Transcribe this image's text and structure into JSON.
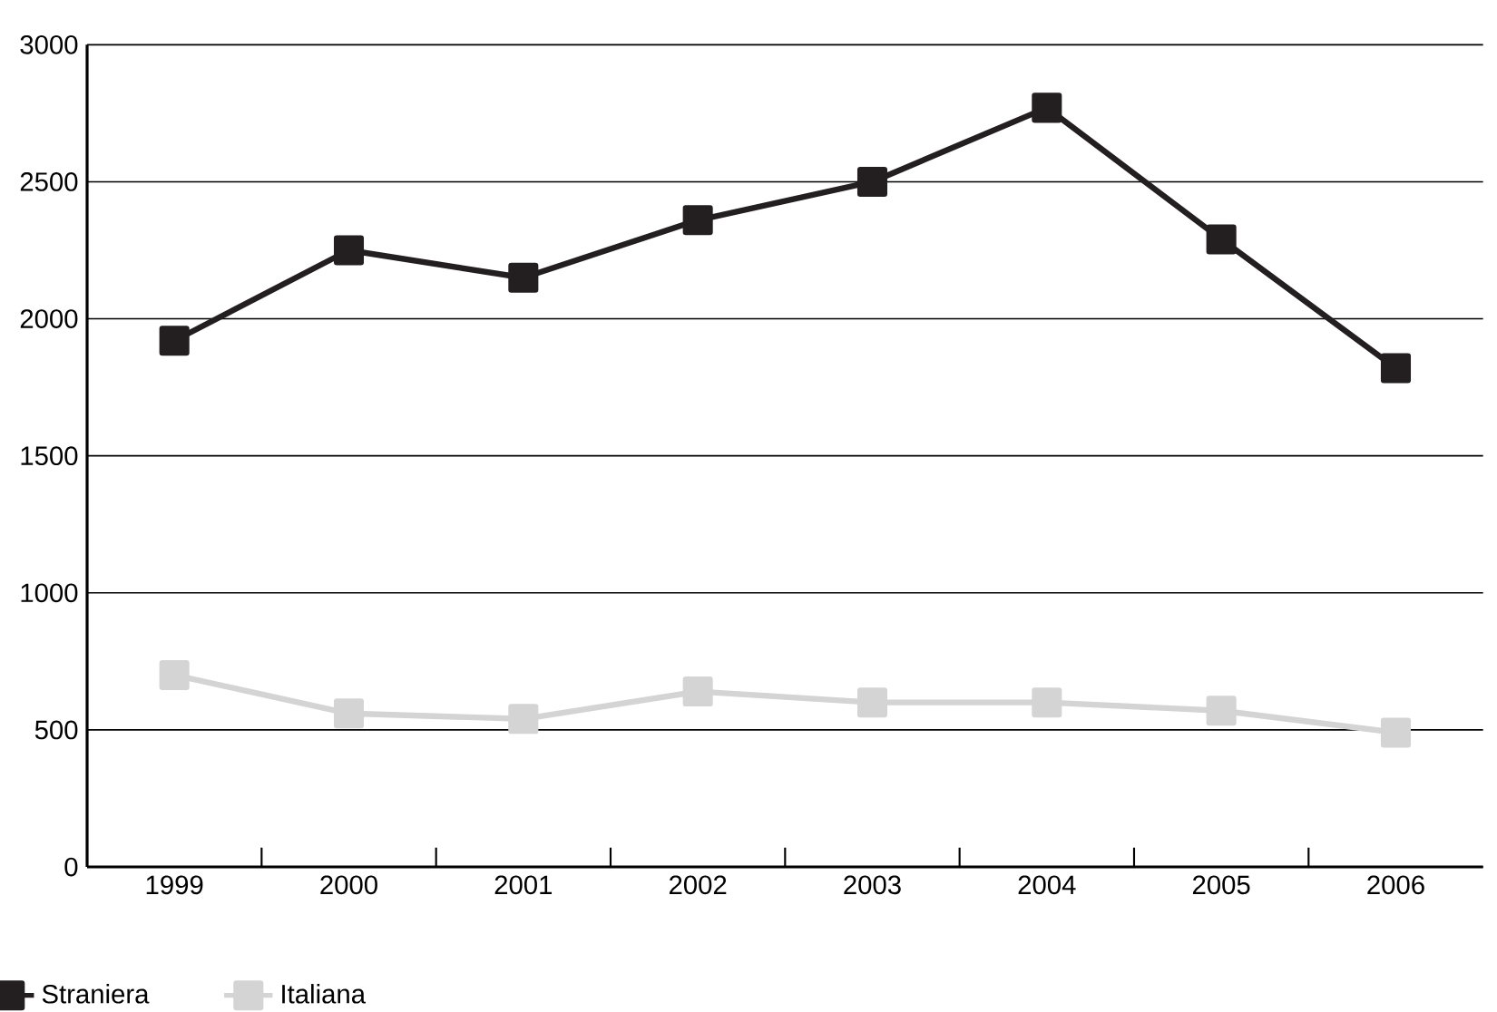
{
  "chart_data": {
    "type": "line",
    "categories": [
      "1999",
      "2000",
      "2001",
      "2002",
      "2003",
      "2004",
      "2005",
      "2006"
    ],
    "series": [
      {
        "name": "Straniera",
        "color": "#231f20",
        "values": [
          1920,
          2250,
          2150,
          2360,
          2500,
          2770,
          2290,
          1820
        ]
      },
      {
        "name": "Italiana",
        "color": "#d4d4d4",
        "values": [
          700,
          560,
          540,
          640,
          600,
          600,
          570,
          490
        ]
      }
    ],
    "ylim": [
      0,
      3000
    ],
    "yticks": [
      0,
      500,
      1000,
      1500,
      2000,
      2500,
      3000
    ],
    "grid": "y",
    "legend": "bottom",
    "marker": "square",
    "line_style": "solid"
  }
}
